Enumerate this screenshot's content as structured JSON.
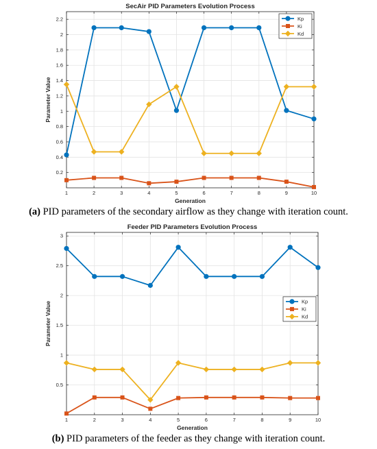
{
  "chart_data": [
    {
      "type": "line",
      "title": "SecAir PID Parameters Evolution Process",
      "xlabel": "Generation",
      "ylabel": "Parameter Value",
      "x": [
        1,
        2,
        3,
        4,
        5,
        6,
        7,
        8,
        9,
        10
      ],
      "xlim": [
        1,
        10
      ],
      "ylim": [
        0,
        2.3
      ],
      "yticks": [
        0.2,
        0.4,
        0.6,
        0.8,
        1,
        1.2,
        1.4,
        1.6,
        1.8,
        2,
        2.2
      ],
      "yticklabels": [
        "0.2",
        "0.4",
        "0.6",
        "0.8",
        "1",
        "1.2",
        "1.4",
        "1.6",
        "1.8",
        "2",
        "2.2"
      ],
      "legend": "top-right",
      "series": [
        {
          "name": "Kp",
          "color": "#0072BD",
          "marker": "circle",
          "values": [
            0.43,
            2.09,
            2.09,
            2.04,
            1.01,
            2.09,
            2.09,
            2.09,
            1.01,
            0.9
          ]
        },
        {
          "name": "Ki",
          "color": "#D95319",
          "marker": "square",
          "values": [
            0.1,
            0.13,
            0.13,
            0.06,
            0.08,
            0.13,
            0.13,
            0.13,
            0.08,
            0.01
          ]
        },
        {
          "name": "Kd",
          "color": "#EDB120",
          "marker": "diamond",
          "values": [
            1.35,
            0.47,
            0.47,
            1.09,
            1.32,
            0.45,
            0.45,
            0.45,
            1.32,
            1.32
          ]
        }
      ]
    },
    {
      "type": "line",
      "title": "Feeder PID Parameters Evolution Process",
      "xlabel": "Generation",
      "ylabel": "Parameter Value",
      "x": [
        1,
        2,
        3,
        4,
        5,
        6,
        7,
        8,
        9,
        10
      ],
      "xlim": [
        1,
        10
      ],
      "ylim": [
        0,
        3.06
      ],
      "yticks": [
        0.5,
        1,
        1.5,
        2,
        2.5,
        3
      ],
      "yticklabels": [
        "0.5",
        "1",
        "1.5",
        "2",
        "2.5",
        "3"
      ],
      "legend": "right",
      "series": [
        {
          "name": "Kp",
          "color": "#0072BD",
          "marker": "circle",
          "values": [
            2.79,
            2.32,
            2.32,
            2.17,
            2.81,
            2.32,
            2.32,
            2.32,
            2.81,
            2.47
          ]
        },
        {
          "name": "Ki",
          "color": "#D95319",
          "marker": "square",
          "values": [
            0.02,
            0.29,
            0.29,
            0.1,
            0.28,
            0.29,
            0.29,
            0.29,
            0.28,
            0.28
          ]
        },
        {
          "name": "Kd",
          "color": "#EDB120",
          "marker": "diamond",
          "values": [
            0.87,
            0.76,
            0.76,
            0.25,
            0.87,
            0.76,
            0.76,
            0.76,
            0.87,
            0.87
          ]
        }
      ]
    }
  ],
  "captions": {
    "a_label": "(a)",
    "a_text": " PID parameters of the secondary airflow as they change with iteration count.",
    "b_label": "(b)",
    "b_text": " PID parameters of the feeder as they change with iteration count."
  }
}
